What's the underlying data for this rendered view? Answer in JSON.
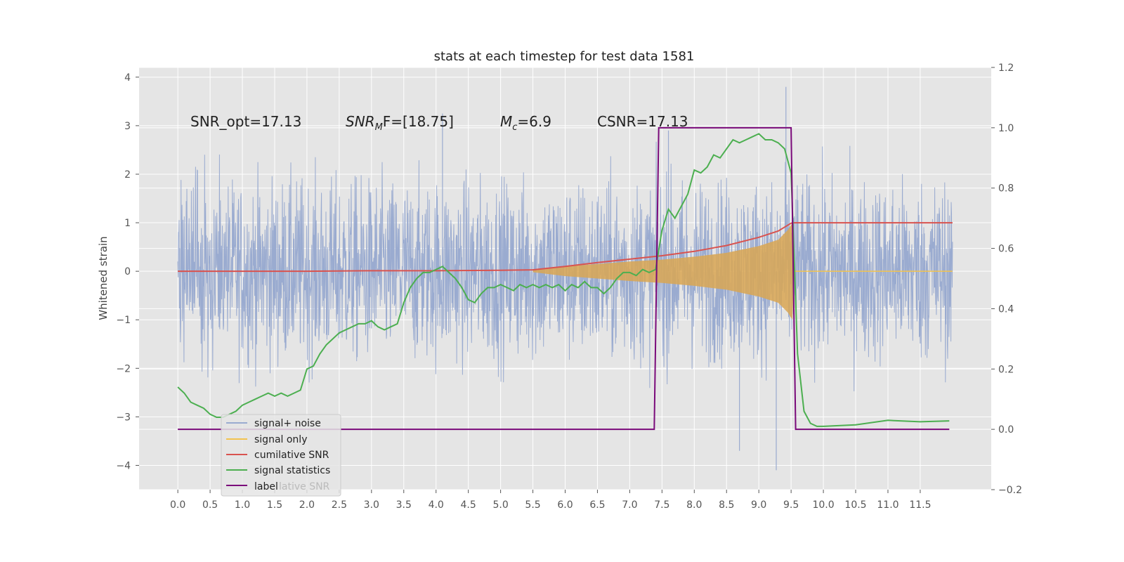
{
  "chart_data": {
    "type": "line",
    "title": "stats at each timestep for test data 1581",
    "ylabel": "Whitened strain",
    "xlim": [
      -0.6,
      12.6
    ],
    "ylim": [
      -4.5,
      4.2
    ],
    "y2lim": [
      -0.2,
      1.2
    ],
    "grid": true,
    "legend_position": "lower-left",
    "x_ticks": [
      0.0,
      0.5,
      1.0,
      1.5,
      2.0,
      2.5,
      3.0,
      3.5,
      4.0,
      4.5,
      5.0,
      5.5,
      6.0,
      6.5,
      7.0,
      7.5,
      8.0,
      8.5,
      9.0,
      9.5,
      10.0,
      10.5,
      11.0,
      11.5
    ],
    "x_tick_labels": [
      "0.0",
      "0.5",
      "1.0",
      "1.5",
      "2.0",
      "2.5",
      "3.0",
      "3.5",
      "4.0",
      "4.5",
      "5.0",
      "5.5",
      "6.0",
      "6.5",
      "7.0",
      "7.5",
      "8.0",
      "8.5",
      "9.0",
      "9.5",
      "10.0",
      "10.5",
      "11.0",
      "11.5"
    ],
    "y_ticks": [
      4,
      3,
      2,
      1,
      0,
      -1,
      -2,
      -3,
      -4
    ],
    "y_tick_labels": [
      "4",
      "3",
      "2",
      "1",
      "0",
      "−1",
      "−2",
      "−3",
      "−4"
    ],
    "y2_ticks": [
      1.2,
      1.0,
      0.8,
      0.6,
      0.4,
      0.2,
      0.0,
      -0.2
    ],
    "y2_tick_labels": [
      "1.2",
      "1.0",
      "0.8",
      "0.6",
      "0.4",
      "0.2",
      "0.0",
      "−0.2"
    ],
    "annotations": [
      "SNR_opt=17.13",
      "SNR",
      "M",
      "F=[18.75]",
      "M",
      "c",
      "=6.9",
      "CSNR=17.13"
    ],
    "legend": [
      "signal+ noise",
      "signal only",
      "cumilative SNR",
      "signal statistics",
      "label",
      "lative SNR"
    ],
    "colors": {
      "noise": "#9aabd0",
      "signal": "#d9a652",
      "cumulative": "#d9534f",
      "statistics": "#4caf50",
      "label": "#7a0a7a",
      "axes_bg": "#e5e5e5",
      "grid": "#ffffff"
    },
    "series": [
      {
        "name": "cumilative SNR",
        "axis": "left",
        "x": [
          0.0,
          1.0,
          2.0,
          3.0,
          4.0,
          5.0,
          5.5,
          6.0,
          6.5,
          7.0,
          7.5,
          8.0,
          8.5,
          9.0,
          9.3,
          9.5,
          9.55,
          10.0,
          11.0,
          12.0
        ],
        "values": [
          0.0,
          0.0,
          0.0,
          0.01,
          0.01,
          0.02,
          0.03,
          0.1,
          0.18,
          0.25,
          0.32,
          0.41,
          0.53,
          0.7,
          0.83,
          0.99,
          1.0,
          1.0,
          1.0,
          1.0
        ]
      },
      {
        "name": "signal statistics",
        "axis": "right",
        "x": [
          0.0,
          0.1,
          0.2,
          0.3,
          0.4,
          0.5,
          0.6,
          0.7,
          0.8,
          0.9,
          1.0,
          1.1,
          1.2,
          1.3,
          1.4,
          1.5,
          1.6,
          1.7,
          1.8,
          1.9,
          2.0,
          2.1,
          2.2,
          2.3,
          2.4,
          2.5,
          2.6,
          2.7,
          2.8,
          2.9,
          3.0,
          3.1,
          3.2,
          3.3,
          3.4,
          3.5,
          3.6,
          3.7,
          3.8,
          3.9,
          4.0,
          4.1,
          4.2,
          4.3,
          4.4,
          4.5,
          4.6,
          4.7,
          4.8,
          4.9,
          5.0,
          5.1,
          5.2,
          5.3,
          5.4,
          5.5,
          5.6,
          5.7,
          5.8,
          5.9,
          6.0,
          6.1,
          6.2,
          6.3,
          6.4,
          6.5,
          6.6,
          6.7,
          6.8,
          6.9,
          7.0,
          7.1,
          7.2,
          7.3,
          7.4,
          7.5,
          7.6,
          7.7,
          7.8,
          7.9,
          8.0,
          8.1,
          8.2,
          8.3,
          8.4,
          8.5,
          8.6,
          8.7,
          8.8,
          8.9,
          9.0,
          9.1,
          9.2,
          9.3,
          9.4,
          9.5,
          9.6,
          9.7,
          9.8,
          9.9,
          10.0,
          10.5,
          11.0,
          11.5,
          11.95
        ],
        "values": [
          0.14,
          0.12,
          0.09,
          0.08,
          0.07,
          0.05,
          0.04,
          0.04,
          0.05,
          0.06,
          0.08,
          0.09,
          0.1,
          0.11,
          0.12,
          0.11,
          0.12,
          0.11,
          0.12,
          0.13,
          0.2,
          0.21,
          0.25,
          0.28,
          0.3,
          0.32,
          0.33,
          0.34,
          0.35,
          0.35,
          0.36,
          0.34,
          0.33,
          0.34,
          0.35,
          0.42,
          0.47,
          0.5,
          0.52,
          0.52,
          0.53,
          0.54,
          0.52,
          0.5,
          0.47,
          0.43,
          0.42,
          0.45,
          0.47,
          0.47,
          0.48,
          0.47,
          0.46,
          0.48,
          0.47,
          0.48,
          0.47,
          0.48,
          0.47,
          0.48,
          0.46,
          0.48,
          0.47,
          0.49,
          0.47,
          0.47,
          0.45,
          0.47,
          0.5,
          0.52,
          0.52,
          0.51,
          0.53,
          0.52,
          0.53,
          0.66,
          0.73,
          0.7,
          0.74,
          0.78,
          0.86,
          0.85,
          0.87,
          0.91,
          0.9,
          0.93,
          0.96,
          0.95,
          0.96,
          0.97,
          0.98,
          0.96,
          0.96,
          0.95,
          0.93,
          0.85,
          0.25,
          0.06,
          0.02,
          0.01,
          0.01,
          0.015,
          0.03,
          0.025,
          0.028
        ]
      },
      {
        "name": "label",
        "axis": "right",
        "x": [
          0.0,
          7.38,
          7.45,
          9.5,
          9.57,
          11.95
        ],
        "values": [
          0.0,
          0.0,
          1.0,
          1.0,
          0.0,
          0.0
        ]
      },
      {
        "name": "signal+ noise",
        "axis": "left",
        "x_range": [
          0.0,
          12.0
        ],
        "typical_amplitude": 1.4,
        "envelope_peaks": {
          "max": 3.8,
          "min": -4.1
        }
      },
      {
        "name": "signal only",
        "axis": "left",
        "x_range": [
          5.5,
          9.55
        ],
        "envelope": {
          "x": [
            5.5,
            6.0,
            6.5,
            7.0,
            7.5,
            8.0,
            8.5,
            9.0,
            9.3,
            9.45,
            9.52,
            9.55
          ],
          "amplitude": [
            0.02,
            0.1,
            0.15,
            0.2,
            0.24,
            0.3,
            0.38,
            0.52,
            0.65,
            0.85,
            1.0,
            0.0
          ]
        }
      }
    ]
  }
}
